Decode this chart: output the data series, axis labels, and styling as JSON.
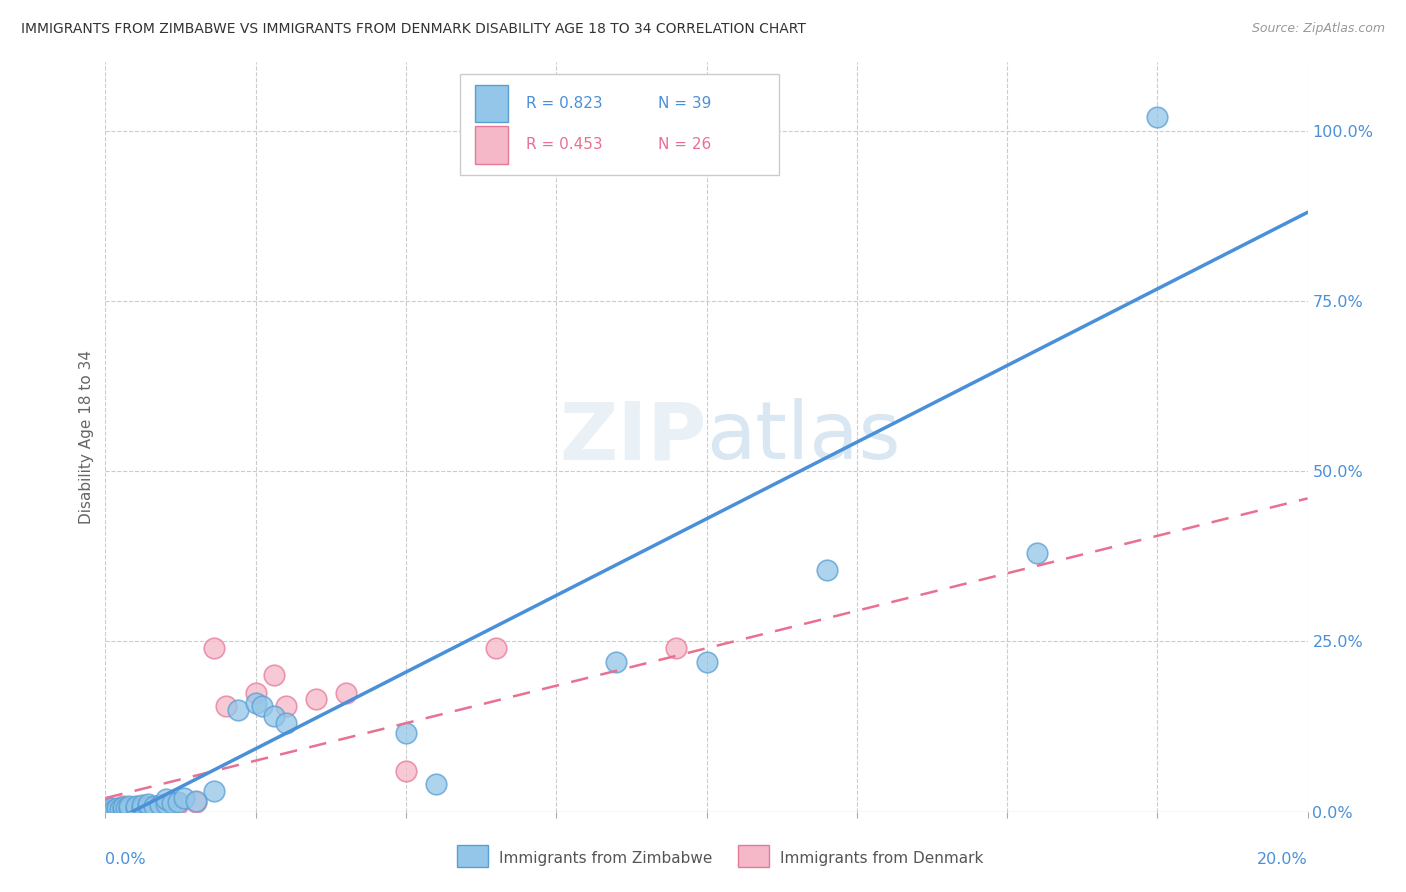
{
  "title": "IMMIGRANTS FROM ZIMBABWE VS IMMIGRANTS FROM DENMARK DISABILITY AGE 18 TO 34 CORRELATION CHART",
  "source": "Source: ZipAtlas.com",
  "ylabel": "Disability Age 18 to 34",
  "ylabel_right_ticks": [
    "0.0%",
    "25.0%",
    "50.0%",
    "75.0%",
    "100.0%"
  ],
  "legend_r1": "R = 0.823",
  "legend_n1": "N = 39",
  "legend_r2": "R = 0.453",
  "legend_n2": "N = 26",
  "legend_label1": "Immigrants from Zimbabwe",
  "legend_label2": "Immigrants from Denmark",
  "watermark": "ZIPatlas",
  "blue_scatter": "#93c6e8",
  "pink_scatter": "#f4b8c8",
  "blue_edge": "#5a9fd4",
  "pink_edge": "#e8789a",
  "blue_line_color": "#4a90d9",
  "pink_line_color": "#e87090",
  "xmin": 0.0,
  "xmax": 0.2,
  "ymin": 0.0,
  "ymax": 1.1,
  "zim_line_x0": 0.0,
  "zim_line_y0": -0.02,
  "zim_line_x1": 0.2,
  "zim_line_y1": 0.88,
  "den_line_x0": 0.0,
  "den_line_y0": 0.02,
  "den_line_x1": 0.2,
  "den_line_y1": 0.46,
  "zimbabwe_points_x": [
    0.0005,
    0.001,
    0.001,
    0.0015,
    0.002,
    0.002,
    0.0025,
    0.003,
    0.003,
    0.0035,
    0.004,
    0.004,
    0.005,
    0.005,
    0.006,
    0.006,
    0.007,
    0.007,
    0.008,
    0.009,
    0.01,
    0.01,
    0.011,
    0.012,
    0.013,
    0.015,
    0.018,
    0.022,
    0.025,
    0.026,
    0.028,
    0.03,
    0.055,
    0.1,
    0.12,
    0.155,
    0.175,
    0.05,
    0.085
  ],
  "zimbabwe_points_y": [
    0.001,
    0.002,
    0.005,
    0.003,
    0.002,
    0.006,
    0.004,
    0.003,
    0.007,
    0.005,
    0.004,
    0.008,
    0.005,
    0.009,
    0.006,
    0.01,
    0.007,
    0.012,
    0.008,
    0.01,
    0.012,
    0.018,
    0.013,
    0.015,
    0.02,
    0.016,
    0.03,
    0.15,
    0.16,
    0.155,
    0.14,
    0.13,
    0.04,
    0.22,
    0.355,
    0.38,
    1.02,
    0.115,
    0.22
  ],
  "denmark_points_x": [
    0.0005,
    0.001,
    0.001,
    0.0015,
    0.002,
    0.003,
    0.003,
    0.004,
    0.005,
    0.006,
    0.007,
    0.008,
    0.009,
    0.01,
    0.012,
    0.015,
    0.018,
    0.02,
    0.025,
    0.028,
    0.03,
    0.035,
    0.04,
    0.05,
    0.065,
    0.095
  ],
  "denmark_points_y": [
    0.001,
    0.002,
    0.005,
    0.003,
    0.002,
    0.004,
    0.008,
    0.003,
    0.007,
    0.005,
    0.009,
    0.006,
    0.01,
    0.008,
    0.012,
    0.015,
    0.24,
    0.155,
    0.175,
    0.2,
    0.155,
    0.165,
    0.175,
    0.06,
    0.24,
    0.24
  ]
}
